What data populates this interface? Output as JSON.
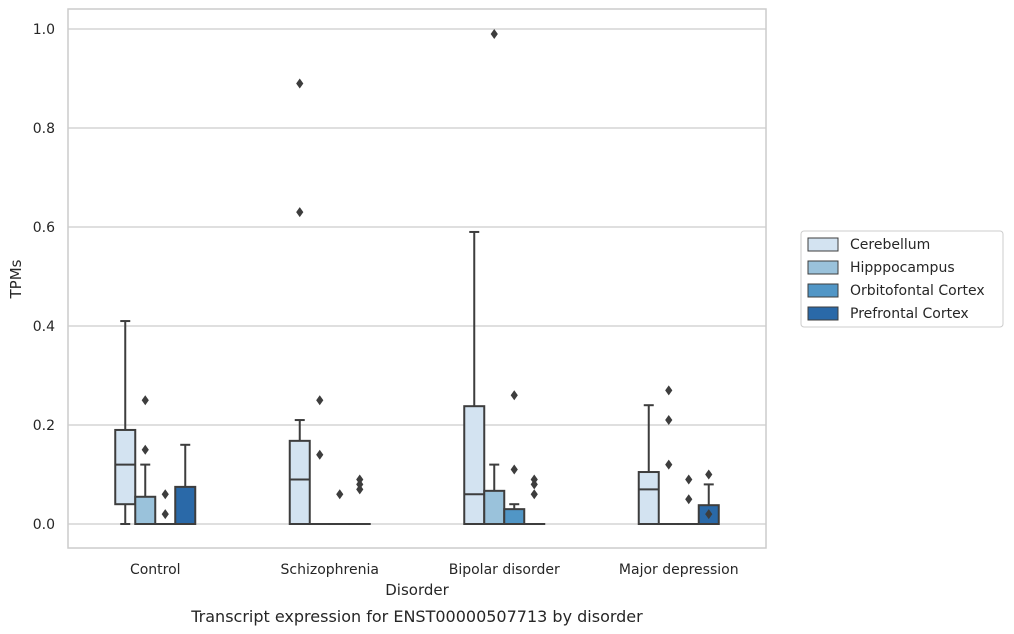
{
  "caption": "Transcript expression for ENST00000507713 by disorder",
  "chart_data": {
    "type": "box",
    "title": "",
    "xlabel": "Disorder",
    "ylabel": "TPMs",
    "ylim": [
      -0.05,
      1.04
    ],
    "yticks": [
      "0.0",
      "0.2",
      "0.4",
      "0.6",
      "0.8",
      "1.0"
    ],
    "grid": "horizontal",
    "legend_position": "right",
    "categories": [
      "Control",
      "Schizophrenia",
      "Bipolar disorder",
      "Major depression"
    ],
    "series": [
      {
        "name": "Cerebellum",
        "color": "#d3e3f1",
        "boxes": [
          {
            "whisker_low": 0.0,
            "q1": 0.04,
            "median": 0.12,
            "q3": 0.19,
            "whisker_high": 0.41,
            "outliers": []
          },
          {
            "whisker_low": 0.0,
            "q1": 0.0,
            "median": 0.09,
            "q3": 0.168,
            "whisker_high": 0.21,
            "outliers": [
              0.63,
              0.89
            ]
          },
          {
            "whisker_low": 0.0,
            "q1": 0.0,
            "median": 0.06,
            "q3": 0.238,
            "whisker_high": 0.59,
            "outliers": []
          },
          {
            "whisker_low": 0.0,
            "q1": 0.0,
            "median": 0.07,
            "q3": 0.105,
            "whisker_high": 0.24,
            "outliers": []
          }
        ]
      },
      {
        "name": "Hipppocampus",
        "color": "#9ac2db",
        "boxes": [
          {
            "whisker_low": 0.0,
            "q1": 0.0,
            "median": 0.0,
            "q3": 0.055,
            "whisker_high": 0.12,
            "outliers": [
              0.15,
              0.25
            ]
          },
          {
            "whisker_low": 0.0,
            "q1": 0.0,
            "median": 0.0,
            "q3": 0.0,
            "whisker_high": 0.0,
            "outliers": [
              0.14,
              0.25
            ]
          },
          {
            "whisker_low": 0.0,
            "q1": 0.0,
            "median": 0.0,
            "q3": 0.067,
            "whisker_high": 0.12,
            "outliers": [
              0.99
            ]
          },
          {
            "whisker_low": 0.0,
            "q1": 0.0,
            "median": 0.0,
            "q3": 0.0,
            "whisker_high": 0.0,
            "outliers": [
              0.12,
              0.21,
              0.27
            ]
          }
        ]
      },
      {
        "name": "Orbitofontal Cortex",
        "color": "#5196c6",
        "boxes": [
          {
            "whisker_low": 0.0,
            "q1": 0.0,
            "median": 0.0,
            "q3": 0.0,
            "whisker_high": 0.0,
            "outliers": [
              0.02,
              0.06
            ]
          },
          {
            "whisker_low": 0.0,
            "q1": 0.0,
            "median": 0.0,
            "q3": 0.0,
            "whisker_high": 0.0,
            "outliers": [
              0.06
            ]
          },
          {
            "whisker_low": 0.0,
            "q1": 0.0,
            "median": 0.0,
            "q3": 0.03,
            "whisker_high": 0.04,
            "outliers": [
              0.11,
              0.26
            ]
          },
          {
            "whisker_low": 0.0,
            "q1": 0.0,
            "median": 0.0,
            "q3": 0.0,
            "whisker_high": 0.0,
            "outliers": [
              0.05,
              0.09
            ]
          }
        ]
      },
      {
        "name": "Prefrontal Cortex",
        "color": "#2a69a8",
        "boxes": [
          {
            "whisker_low": 0.0,
            "q1": 0.0,
            "median": 0.0,
            "q3": 0.075,
            "whisker_high": 0.16,
            "outliers": []
          },
          {
            "whisker_low": 0.0,
            "q1": 0.0,
            "median": 0.0,
            "q3": 0.0,
            "whisker_high": 0.0,
            "outliers": [
              0.07,
              0.08,
              0.09
            ]
          },
          {
            "whisker_low": 0.0,
            "q1": 0.0,
            "median": 0.0,
            "q3": 0.0,
            "whisker_high": 0.0,
            "outliers": [
              0.06,
              0.08,
              0.09
            ]
          },
          {
            "whisker_low": 0.0,
            "q1": 0.0,
            "median": 0.0,
            "q3": 0.038,
            "whisker_high": 0.08,
            "outliers": [
              0.02,
              0.1
            ]
          }
        ]
      }
    ]
  }
}
